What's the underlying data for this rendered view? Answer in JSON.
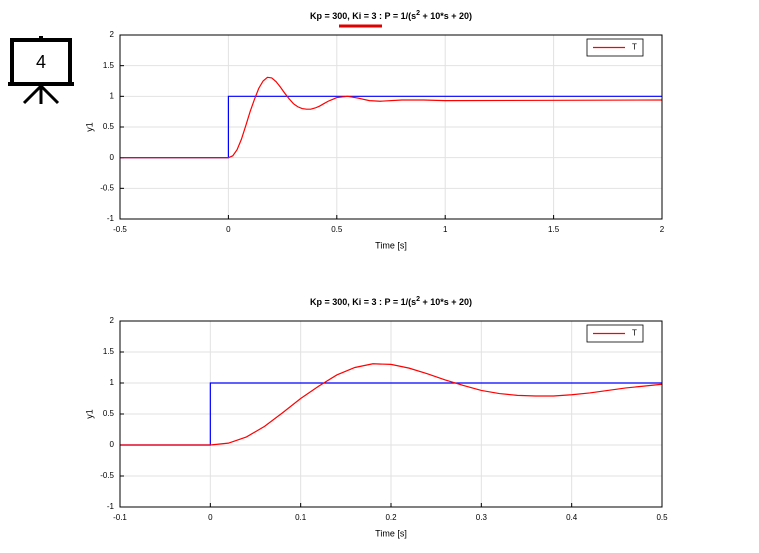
{
  "badge": "4",
  "chart_data": [
    {
      "type": "line",
      "title": [
        "Kp = 300, Ki = 3 : P = 1/(s",
        "2",
        " + 10*s + 20)"
      ],
      "xlabel": "Time [s]",
      "ylabel": "y1",
      "xlim": [
        -0.5,
        2
      ],
      "xticks": [
        -0.5,
        0,
        0.5,
        1,
        1.5,
        2
      ],
      "ylim": [
        -1,
        2
      ],
      "yticks": [
        -1,
        -0.5,
        0,
        0.5,
        1,
        1.5,
        2
      ],
      "grid": true,
      "legend": "upper right",
      "series": [
        {
          "color": "#0000ff",
          "x": [
            -0.5,
            0,
            0,
            2
          ],
          "values": [
            0,
            0,
            1,
            1
          ]
        },
        {
          "name": "T",
          "color": "#ff0000",
          "x": [
            -0.5,
            0,
            0.02,
            0.04,
            0.06,
            0.08,
            0.1,
            0.12,
            0.14,
            0.16,
            0.18,
            0.2,
            0.22,
            0.24,
            0.26,
            0.28,
            0.3,
            0.32,
            0.34,
            0.36,
            0.38,
            0.4,
            0.42,
            0.44,
            0.46,
            0.48,
            0.5,
            0.55,
            0.6,
            0.65,
            0.7,
            0.8,
            0.9,
            1.0,
            1.5,
            2
          ],
          "values": [
            0,
            0,
            0.03,
            0.13,
            0.3,
            0.52,
            0.75,
            0.95,
            1.13,
            1.25,
            1.31,
            1.3,
            1.24,
            1.15,
            1.05,
            0.96,
            0.88,
            0.83,
            0.8,
            0.79,
            0.79,
            0.81,
            0.84,
            0.88,
            0.92,
            0.95,
            0.98,
            1.0,
            0.97,
            0.93,
            0.92,
            0.94,
            0.94,
            0.93,
            0.935,
            0.94
          ]
        }
      ]
    },
    {
      "type": "line",
      "title": [
        "Kp = 300, Ki = 3 : P = 1/(s",
        "2",
        " + 10*s + 20)"
      ],
      "xlabel": "Time [s]",
      "ylabel": "y1",
      "xlim": [
        -0.1,
        0.5
      ],
      "xticks": [
        -0.1,
        0,
        0.1,
        0.2,
        0.3,
        0.4,
        0.5
      ],
      "ylim": [
        -1,
        2
      ],
      "yticks": [
        -1,
        -0.5,
        0,
        0.5,
        1,
        1.5,
        2
      ],
      "grid": true,
      "legend": "upper right",
      "series": [
        {
          "color": "#0000ff",
          "x": [
            -0.1,
            0,
            0,
            0.5
          ],
          "values": [
            0,
            0,
            1,
            1
          ]
        },
        {
          "name": "T",
          "color": "#ff0000",
          "x": [
            -0.1,
            0,
            0.02,
            0.04,
            0.06,
            0.08,
            0.1,
            0.12,
            0.14,
            0.16,
            0.18,
            0.2,
            0.22,
            0.24,
            0.26,
            0.28,
            0.3,
            0.32,
            0.34,
            0.36,
            0.38,
            0.4,
            0.42,
            0.44,
            0.46,
            0.48,
            0.5
          ],
          "values": [
            0,
            0,
            0.03,
            0.13,
            0.3,
            0.52,
            0.75,
            0.95,
            1.13,
            1.25,
            1.31,
            1.3,
            1.24,
            1.15,
            1.05,
            0.96,
            0.88,
            0.83,
            0.8,
            0.79,
            0.79,
            0.81,
            0.84,
            0.88,
            0.92,
            0.95,
            0.98
          ]
        }
      ]
    }
  ]
}
